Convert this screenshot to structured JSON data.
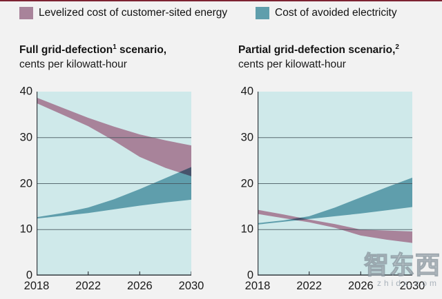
{
  "page": {
    "background": "#f2f2f2",
    "top_accent_color": "#7d2332",
    "plot_bg": "#cfe9ea",
    "gridline_color": "#44545c",
    "axis_color": "#34393f",
    "overlap_color": "#47536b"
  },
  "legend": {
    "items": [
      {
        "label": "Levelized cost of customer-sited energy",
        "color": "#a8839a"
      },
      {
        "label": "Cost of avoided electricity",
        "color": "#5f9eac"
      }
    ]
  },
  "watermark": {
    "text": "智东西",
    "subtext": "zhidx.com"
  },
  "chart_data": [
    {
      "type": "area",
      "title_pre": "Full grid-defection",
      "title_sup": "1",
      "title_post": " scenario,",
      "subtitle": "cents per kilowatt-hour",
      "x": [
        2018,
        2020,
        2022,
        2024,
        2026,
        2028,
        2030
      ],
      "x_ticks": [
        2018,
        2022,
        2026,
        2030
      ],
      "ylim": [
        0,
        40
      ],
      "y_ticks": [
        0,
        10,
        20,
        30,
        40
      ],
      "gridlines": [
        10,
        20,
        30
      ],
      "series": [
        {
          "name": "Levelized cost of customer-sited energy",
          "color": "#a8839a",
          "upper": [
            38.7,
            36.5,
            34.3,
            32.4,
            30.7,
            29.4,
            28.3
          ],
          "lower": [
            37.5,
            35.0,
            32.5,
            29.3,
            25.8,
            23.4,
            21.6
          ]
        },
        {
          "name": "Cost of avoided electricity",
          "color": "#5f9eac",
          "upper": [
            12.7,
            13.6,
            14.8,
            16.6,
            18.8,
            21.2,
            23.6
          ],
          "lower": [
            12.4,
            13.0,
            13.6,
            14.4,
            15.2,
            15.9,
            16.5
          ]
        }
      ]
    },
    {
      "type": "area",
      "title_pre": "Partial grid-defection scenario,",
      "title_sup": "2",
      "title_post": "",
      "subtitle": "cents per kilowatt-hour",
      "x": [
        2018,
        2020,
        2022,
        2024,
        2026,
        2028,
        2030
      ],
      "x_ticks": [
        2018,
        2022,
        2026,
        2030
      ],
      "ylim": [
        0,
        40
      ],
      "y_ticks": [
        0,
        10,
        20,
        30,
        40
      ],
      "gridlines": [
        10,
        20,
        30
      ],
      "series": [
        {
          "name": "Levelized cost of customer-sited energy",
          "color": "#a8839a",
          "upper": [
            14.3,
            13.3,
            12.2,
            11.2,
            10.0,
            9.8,
            9.6
          ],
          "lower": [
            13.4,
            12.5,
            11.6,
            10.4,
            8.7,
            7.8,
            7.1
          ]
        },
        {
          "name": "Cost of avoided electricity",
          "color": "#5f9eac",
          "upper": [
            11.4,
            12.0,
            12.9,
            14.8,
            17.0,
            19.2,
            21.3
          ],
          "lower": [
            11.1,
            11.7,
            12.3,
            12.9,
            13.5,
            14.2,
            14.9
          ]
        }
      ]
    }
  ]
}
